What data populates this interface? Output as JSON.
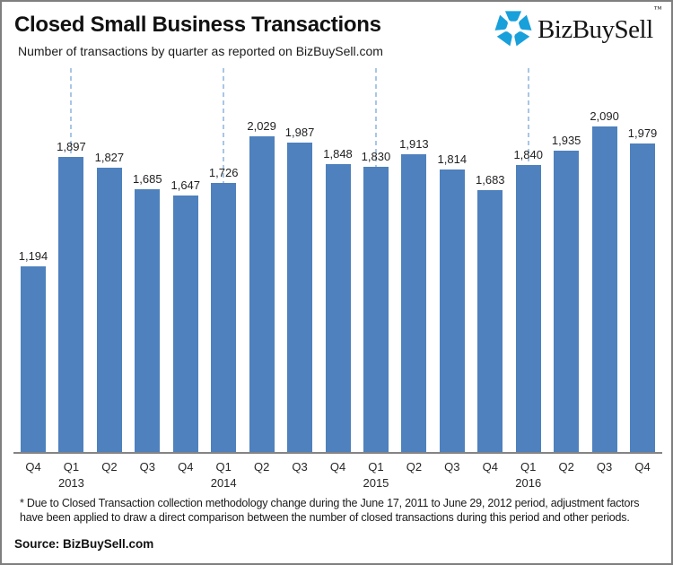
{
  "header": {
    "title": "Closed Small Business Transactions",
    "subtitle": "Number of transactions by quarter as reported on BizBuySell.com",
    "logo": {
      "text": "BizBuySell",
      "tm": "™",
      "icon": "bizbuysell-pinwheel-icon"
    }
  },
  "chart_data": {
    "type": "bar",
    "title": "Closed Small Business Transactions",
    "subtitle": "Number of transactions by quarter as reported on BizBuySell.com",
    "categories": [
      "Q4",
      "Q1",
      "Q2",
      "Q3",
      "Q4",
      "Q1",
      "Q2",
      "Q3",
      "Q4",
      "Q1",
      "Q2",
      "Q3",
      "Q4",
      "Q1",
      "Q2",
      "Q3",
      "Q4"
    ],
    "values": [
      1194,
      1897,
      1827,
      1685,
      1647,
      1726,
      2029,
      1987,
      1848,
      1830,
      1913,
      1814,
      1683,
      1840,
      1935,
      2090,
      1979
    ],
    "value_labels": [
      "1,194",
      "1,897",
      "1,827",
      "1,685",
      "1,647",
      "1,726",
      "2,029",
      "1,987",
      "1,848",
      "1,830",
      "1,913",
      "1,814",
      "1,683",
      "1,840",
      "1,935",
      "2,090",
      "1,979"
    ],
    "years_by_index": {
      "1": "2013",
      "5": "2014",
      "9": "2015",
      "13": "2016"
    },
    "year_dividers_at": [
      1,
      5,
      9,
      13
    ],
    "xlabel": "",
    "ylabel": "",
    "ylim": [
      0,
      2500
    ],
    "grid": false,
    "legend": false,
    "data_labels": true,
    "colors": {
      "bar": "#4E81BD",
      "divider": "#A9C6E5",
      "axis": "#848484",
      "logo_blue": "#18A0DB",
      "text": "#1A1A1A"
    }
  },
  "footnote": "* Due to Closed Transaction collection methodology change during the June 17, 2011 to June 29, 2012 period, adjustment factors have been applied to draw a direct comparison between  the number of closed transactions during this period and other periods.",
  "source": "Source: BizBuySell.com"
}
